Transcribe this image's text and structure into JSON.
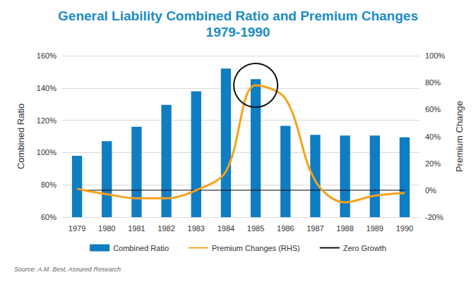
{
  "chart_data": {
    "type": "bar",
    "title": "General Liability Combined Ratio and Premium Changes",
    "subtitle": "1979-1990",
    "source": "Source: A.M. Best, Assured Research",
    "categories": [
      "1979",
      "1980",
      "1981",
      "1982",
      "1983",
      "1984",
      "1985",
      "1986",
      "1987",
      "1988",
      "1989",
      "1990"
    ],
    "series": [
      {
        "name": "Combined Ratio",
        "type": "bar",
        "color": "#0f7dc2",
        "values": [
          98,
          107,
          116,
          129.5,
          138,
          152,
          145.5,
          116.5,
          111,
          110.5,
          110.5,
          109.5
        ]
      },
      {
        "name": "Premium Changes (RHS)",
        "type": "line",
        "color": "#f7a11a",
        "axis": "y2",
        "values": [
          1,
          -3,
          -6,
          -6,
          0,
          14,
          78,
          68,
          7,
          -9,
          -4,
          -2
        ]
      },
      {
        "name": "Zero Growth",
        "type": "line",
        "color": "#000000",
        "axis": "y2",
        "values": [
          0,
          0,
          0,
          0,
          0,
          0,
          0,
          0,
          0,
          0,
          0,
          0
        ]
      }
    ],
    "ylabel": "Combined Ratio",
    "y2label": "Premium Change",
    "ylim": [
      60,
      160
    ],
    "yticks": [
      {
        "value": 60,
        "label": "60%"
      },
      {
        "value": 80,
        "label": "80%"
      },
      {
        "value": 100,
        "label": "100%"
      },
      {
        "value": 120,
        "label": "120%"
      },
      {
        "value": 140,
        "label": "140%"
      },
      {
        "value": 160,
        "label": "160%"
      }
    ],
    "y2lim": [
      -20,
      100
    ],
    "y2ticks": [
      {
        "value": -20,
        "label": "-20%"
      },
      {
        "value": 0,
        "label": "0%"
      },
      {
        "value": 20,
        "label": "20%"
      },
      {
        "value": 40,
        "label": "40%"
      },
      {
        "value": 60,
        "label": "60%"
      },
      {
        "value": 80,
        "label": "80%"
      },
      {
        "value": 100,
        "label": "100%"
      }
    ],
    "grid": true,
    "legend": "bottom"
  }
}
